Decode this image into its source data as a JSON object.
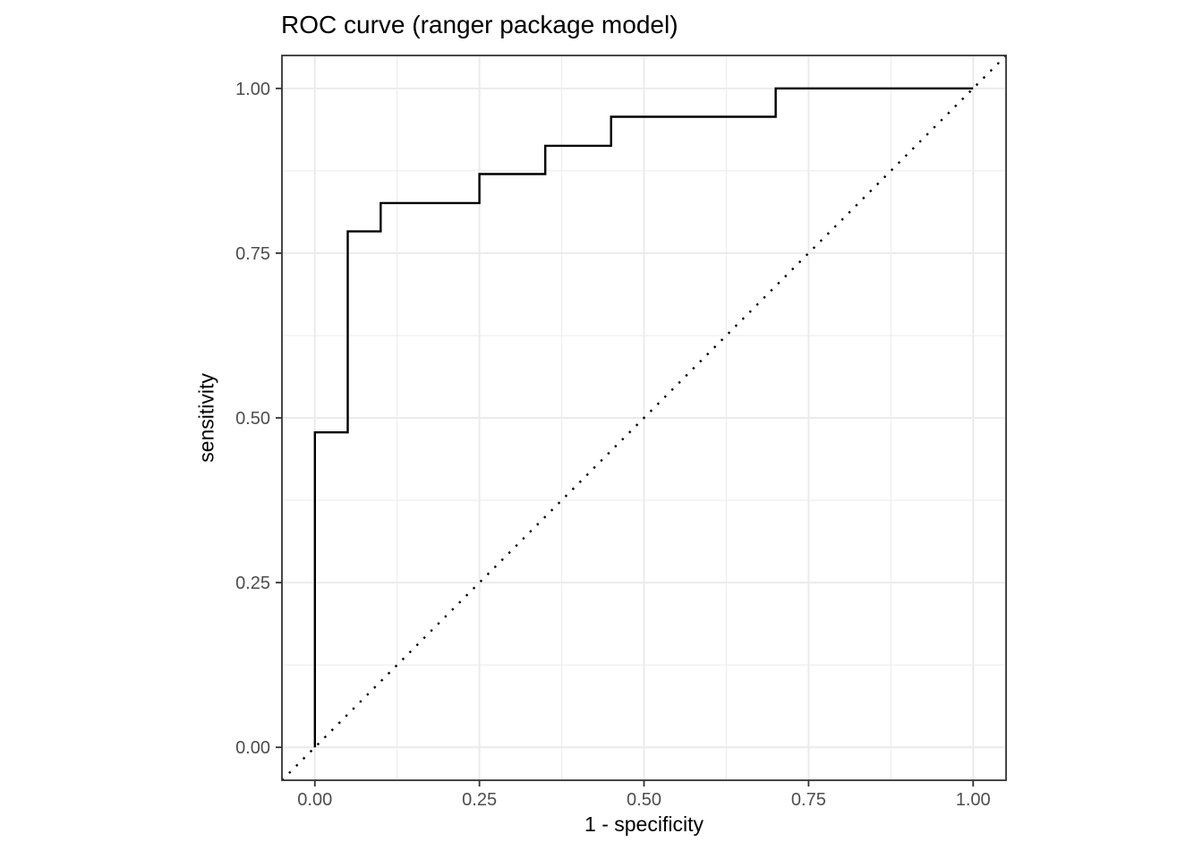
{
  "title": "ROC curve (ranger package model)",
  "chart_data": {
    "type": "line",
    "subtype": "roc-step",
    "title": "ROC curve (ranger package model)",
    "xlabel": "1 - specificity",
    "ylabel": "sensitivity",
    "xlim": [
      -0.05,
      1.05
    ],
    "ylim": [
      -0.05,
      1.05
    ],
    "x_ticks": [
      0.0,
      0.25,
      0.5,
      0.75,
      1.0
    ],
    "y_ticks": [
      0.0,
      0.25,
      0.5,
      0.75,
      1.0
    ],
    "x_tick_labels": [
      "0.00",
      "0.25",
      "0.50",
      "0.75",
      "1.00"
    ],
    "y_tick_labels": [
      "0.00",
      "0.25",
      "0.50",
      "0.75",
      "1.00"
    ],
    "grid": {
      "major": [
        0.0,
        0.25,
        0.5,
        0.75,
        1.0
      ],
      "minor": [
        0.125,
        0.375,
        0.625,
        0.875
      ],
      "color": "#EBEBEB",
      "major_width": 2,
      "minor_width": 1
    },
    "panel": {
      "background": "#FFFFFF",
      "border_color": "#333333",
      "tick_color": "#333333",
      "tick_label_color": "#4D4D4D",
      "tick_label_size": 20
    },
    "series": [
      {
        "name": "chance-diagonal",
        "style": "dotted",
        "color": "#000000",
        "width": 2.4,
        "dash": "2.4 8.8",
        "points": [
          [
            -0.05,
            -0.05
          ],
          [
            1.05,
            1.05
          ]
        ]
      },
      {
        "name": "roc-curve",
        "style": "solid",
        "color": "#000000",
        "width": 2.4,
        "points": [
          [
            0.0,
            0.0
          ],
          [
            0.0,
            0.478
          ],
          [
            0.05,
            0.478
          ],
          [
            0.05,
            0.783
          ],
          [
            0.1,
            0.783
          ],
          [
            0.1,
            0.826
          ],
          [
            0.25,
            0.826
          ],
          [
            0.25,
            0.87
          ],
          [
            0.35,
            0.87
          ],
          [
            0.35,
            0.913
          ],
          [
            0.45,
            0.913
          ],
          [
            0.45,
            0.957
          ],
          [
            0.7,
            0.957
          ],
          [
            0.7,
            1.0
          ],
          [
            1.0,
            1.0
          ]
        ]
      }
    ],
    "legend": null
  }
}
